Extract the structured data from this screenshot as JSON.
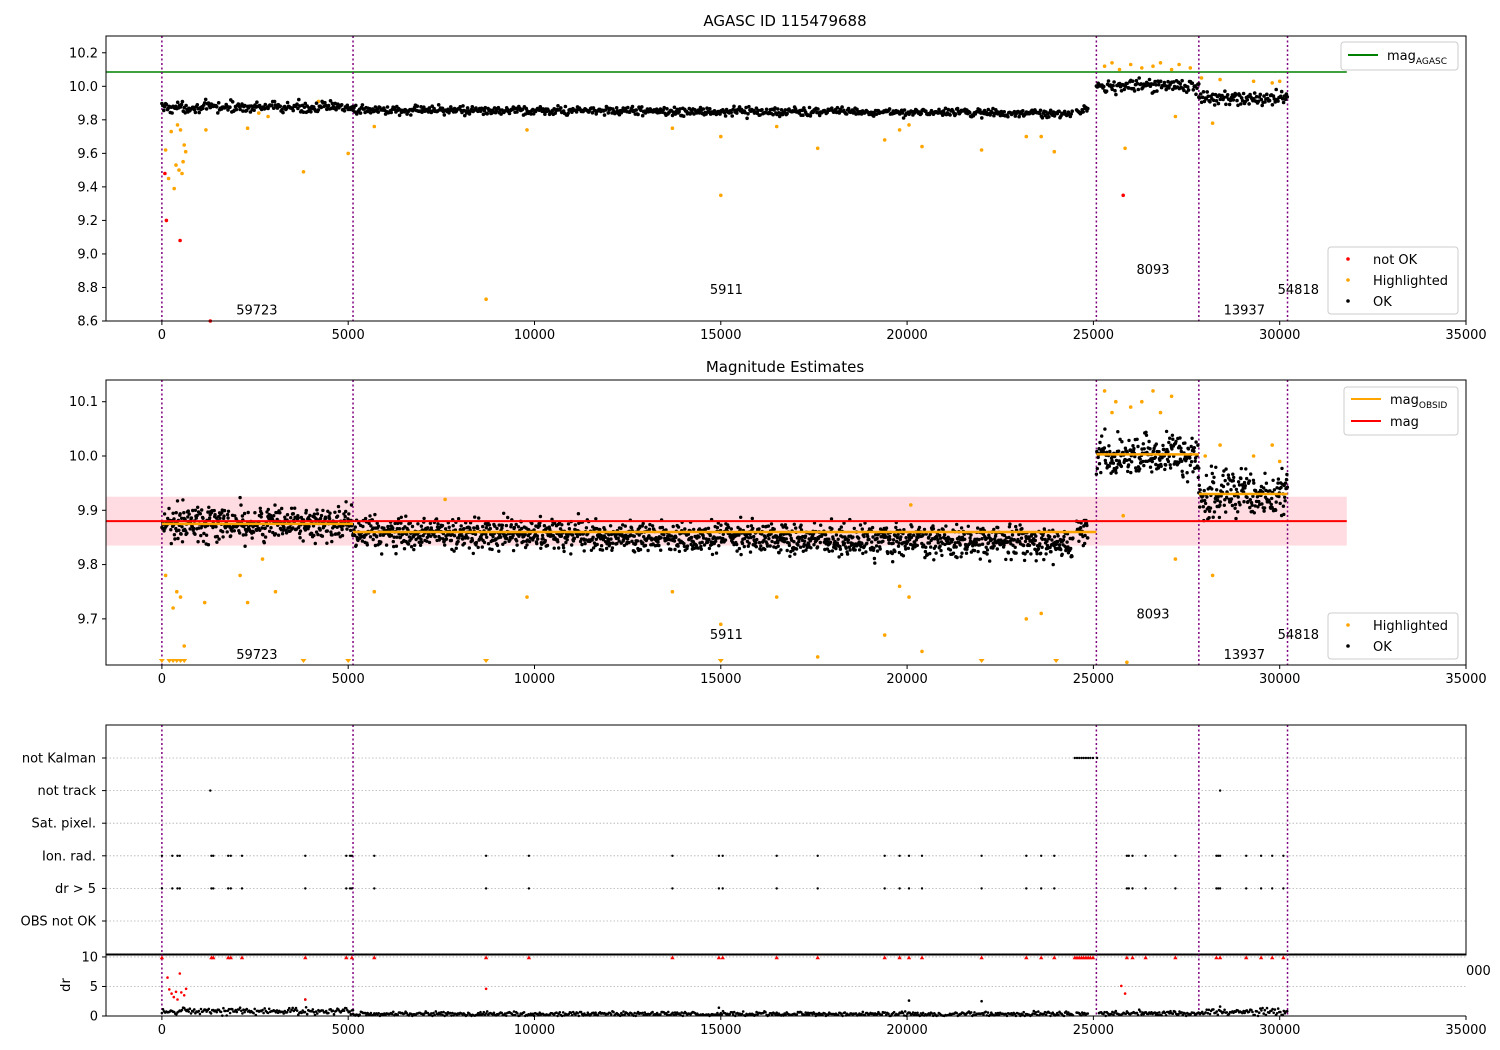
{
  "figure": {
    "background": "#ffffff"
  },
  "chart_data": [
    {
      "type": "scatter",
      "title": "AGASC ID 115479688",
      "xlim": [
        -1500,
        35000
      ],
      "ylim": [
        8.6,
        10.3
      ],
      "xticks": [
        "0",
        "5000",
        "10000",
        "15000",
        "20000",
        "25000",
        "30000",
        "35000"
      ],
      "xtick_values": [
        0,
        5000,
        10000,
        15000,
        20000,
        25000,
        30000,
        35000
      ],
      "yticks": [
        "8.6",
        "8.8",
        "9.0",
        "9.2",
        "9.4",
        "9.6",
        "9.8",
        "10.0",
        "10.2"
      ],
      "ytick_values": [
        8.6,
        8.8,
        9.0,
        9.2,
        9.4,
        9.6,
        9.8,
        10.0,
        10.2
      ],
      "obs_boundaries": [
        0,
        5130,
        25080,
        27830,
        30210
      ],
      "obs_labels": [
        {
          "text": "59723",
          "x": 2550,
          "y": 8.67
        },
        {
          "text": "5911",
          "x": 15150,
          "y": 8.79
        },
        {
          "text": "8093",
          "x": 26600,
          "y": 8.91
        },
        {
          "text": "13937",
          "x": 29050,
          "y": 8.67
        },
        {
          "text": "54818",
          "x": 30500,
          "y": 8.79
        }
      ],
      "hlines": [
        {
          "name": "mag_AGASC",
          "y": 10.085,
          "x0": -1500,
          "x1": 31800,
          "color": "#008000"
        }
      ],
      "segments_ok": [
        {
          "x0": 0,
          "x1": 5130,
          "mean": 9.875,
          "spread": 0.025
        },
        {
          "x0": 5130,
          "x1": 24450,
          "mean": 9.86,
          "spread": 0.02,
          "slope": -0.02
        },
        {
          "x0": 24550,
          "x1": 24850,
          "mean": 9.86,
          "spread": 0.02
        },
        {
          "x0": 25080,
          "x1": 27830,
          "mean": 10.0,
          "spread": 0.03
        },
        {
          "x0": 27830,
          "x1": 30210,
          "mean": 9.93,
          "spread": 0.035
        }
      ],
      "highlighted": [
        [
          100,
          9.62
        ],
        [
          180,
          9.45
        ],
        [
          250,
          9.73
        ],
        [
          330,
          9.39
        ],
        [
          380,
          9.53
        ],
        [
          420,
          9.77
        ],
        [
          460,
          9.5
        ],
        [
          500,
          9.74
        ],
        [
          540,
          9.48
        ],
        [
          570,
          9.55
        ],
        [
          600,
          9.65
        ],
        [
          640,
          9.61
        ],
        [
          1180,
          9.74
        ],
        [
          2300,
          9.75
        ],
        [
          2600,
          9.84
        ],
        [
          2850,
          9.82
        ],
        [
          3800,
          9.49
        ],
        [
          4200,
          9.91
        ],
        [
          5000,
          9.6
        ],
        [
          5700,
          9.76
        ],
        [
          8700,
          8.73
        ],
        [
          9800,
          9.74
        ],
        [
          13700,
          9.75
        ],
        [
          15000,
          9.35
        ],
        [
          15000,
          9.7
        ],
        [
          16500,
          9.76
        ],
        [
          17600,
          9.63
        ],
        [
          19400,
          9.68
        ],
        [
          19800,
          9.74
        ],
        [
          20050,
          9.77
        ],
        [
          20400,
          9.64
        ],
        [
          22000,
          9.62
        ],
        [
          23200,
          9.7
        ],
        [
          23600,
          9.7
        ],
        [
          23950,
          9.61
        ],
        [
          25850,
          9.63
        ],
        [
          27200,
          9.82
        ],
        [
          28200,
          9.78
        ],
        [
          25300,
          10.12
        ],
        [
          25500,
          10.14
        ],
        [
          25700,
          10.1
        ],
        [
          26000,
          10.13
        ],
        [
          26300,
          10.11
        ],
        [
          26600,
          10.12
        ],
        [
          26800,
          10.14
        ],
        [
          27100,
          10.1
        ],
        [
          27300,
          10.13
        ],
        [
          27600,
          10.11
        ],
        [
          27900,
          10.05
        ],
        [
          28400,
          10.04
        ],
        [
          29300,
          10.03
        ],
        [
          29800,
          10.02
        ],
        [
          30000,
          10.03
        ]
      ],
      "not_ok": [
        [
          80,
          9.48
        ],
        [
          120,
          9.2
        ],
        [
          490,
          9.08
        ],
        [
          1300,
          8.6
        ],
        [
          25800,
          9.35
        ]
      ],
      "legend_lines": [
        {
          "label": "mag",
          "sub": "AGASC",
          "color": "#008000"
        }
      ],
      "legend_points": [
        {
          "label": "not OK",
          "color": "#ff0000"
        },
        {
          "label": "Highlighted",
          "color": "#ffa500"
        },
        {
          "label": "OK",
          "color": "#000000"
        }
      ]
    },
    {
      "type": "scatter",
      "title": "Magnitude Estimates",
      "xlim": [
        -1500,
        35000
      ],
      "ylim": [
        9.615,
        10.14
      ],
      "xticks": [
        "0",
        "5000",
        "10000",
        "15000",
        "20000",
        "25000",
        "30000",
        "35000"
      ],
      "xtick_values": [
        0,
        5000,
        10000,
        15000,
        20000,
        25000,
        30000,
        35000
      ],
      "yticks": [
        "9.7",
        "9.8",
        "9.9",
        "10.0",
        "10.1"
      ],
      "ytick_values": [
        9.7,
        9.8,
        9.9,
        10.0,
        10.1
      ],
      "obs_boundaries": [
        0,
        5130,
        25080,
        27830,
        30210
      ],
      "obs_labels": [
        {
          "text": "59723",
          "x": 2550,
          "y": 9.635
        },
        {
          "text": "5911",
          "x": 15150,
          "y": 9.672
        },
        {
          "text": "8093",
          "x": 26600,
          "y": 9.71
        },
        {
          "text": "13937",
          "x": 29050,
          "y": 9.635
        },
        {
          "text": "54818",
          "x": 30500,
          "y": 9.672
        }
      ],
      "mag_band": {
        "y0": 9.835,
        "y1": 9.925,
        "x0": -1500,
        "x1": 31800,
        "color": "#ffc0c8"
      },
      "mag_line": {
        "y": 9.88,
        "color": "#ff0000"
      },
      "obsid_means": [
        {
          "x0": 0,
          "x1": 5130,
          "y": 9.875
        },
        {
          "x0": 5130,
          "x1": 25080,
          "y": 9.86
        },
        {
          "x0": 25080,
          "x1": 27830,
          "y": 10.003
        },
        {
          "x0": 27830,
          "x1": 30210,
          "y": 9.93
        }
      ],
      "segments_ok": [
        {
          "x0": 0,
          "x1": 5130,
          "mean": 9.875,
          "spread": 0.025
        },
        {
          "x0": 5130,
          "x1": 24450,
          "mean": 9.86,
          "spread": 0.022,
          "slope": -0.02
        },
        {
          "x0": 24550,
          "x1": 24850,
          "mean": 9.86,
          "spread": 0.02
        },
        {
          "x0": 25080,
          "x1": 27830,
          "mean": 10.0,
          "spread": 0.03
        },
        {
          "x0": 27830,
          "x1": 30210,
          "mean": 9.93,
          "spread": 0.035
        }
      ],
      "highlighted": [
        [
          100,
          9.78
        ],
        [
          300,
          9.72
        ],
        [
          400,
          9.75
        ],
        [
          500,
          9.74
        ],
        [
          600,
          9.65
        ],
        [
          1150,
          9.73
        ],
        [
          2100,
          9.78
        ],
        [
          2300,
          9.73
        ],
        [
          2700,
          9.81
        ],
        [
          3050,
          9.75
        ],
        [
          5700,
          9.75
        ],
        [
          7600,
          9.92
        ],
        [
          9800,
          9.74
        ],
        [
          13700,
          9.75
        ],
        [
          15000,
          9.69
        ],
        [
          16500,
          9.74
        ],
        [
          17600,
          9.63
        ],
        [
          19400,
          9.67
        ],
        [
          19800,
          9.76
        ],
        [
          20050,
          9.74
        ],
        [
          20400,
          9.64
        ],
        [
          20100,
          9.91
        ],
        [
          23200,
          9.7
        ],
        [
          23600,
          9.71
        ],
        [
          25800,
          9.89
        ],
        [
          25900,
          9.62
        ],
        [
          27200,
          9.81
        ],
        [
          28200,
          9.78
        ],
        [
          25300,
          10.12
        ],
        [
          25500,
          10.08
        ],
        [
          25600,
          10.1
        ],
        [
          26000,
          10.09
        ],
        [
          26300,
          10.1
        ],
        [
          26600,
          10.12
        ],
        [
          26800,
          10.08
        ],
        [
          27100,
          10.11
        ],
        [
          28000,
          10.0
        ],
        [
          28400,
          10.02
        ],
        [
          29300,
          10.0
        ],
        [
          29800,
          10.02
        ],
        [
          30000,
          9.99
        ]
      ],
      "clipped": [
        0,
        200,
        300,
        400,
        500,
        600,
        3800,
        5000,
        8700,
        15000,
        22000,
        24000
      ],
      "legend_lines": [
        {
          "label": "mag",
          "sub": "OBSID",
          "color": "#ffa500"
        },
        {
          "label": "mag",
          "sub": "",
          "color": "#ff0000"
        }
      ],
      "legend_points": [
        {
          "label": "Highlighted",
          "color": "#ffa500"
        },
        {
          "label": "OK",
          "color": "#000000"
        }
      ]
    },
    {
      "type": "scatter",
      "title": "",
      "xlim": [
        -1500,
        35000
      ],
      "categories": [
        "not Kalman",
        "not track",
        "Sat. pixel.",
        "Ion. rad.",
        "dr > 5",
        "OBS not OK"
      ],
      "events": {
        "not Kalman": [
          24500,
          24560,
          24620,
          24680,
          24740,
          24800,
          24860,
          24920,
          24990,
          25100
        ],
        "not track": [
          1300,
          28400
        ],
        "Sat. pixel.": [],
        "Ion. rad.": [
          0,
          280,
          420,
          480,
          1330,
          1380,
          1780,
          1850,
          2150,
          3850,
          4950,
          5050,
          5100,
          5700,
          8700,
          9850,
          13700,
          14950,
          15050,
          16500,
          17600,
          19400,
          19800,
          20050,
          20400,
          22000,
          23200,
          23600,
          23950,
          25900,
          25950,
          26050,
          26400,
          27200,
          28300,
          28350,
          28400,
          29100,
          29500,
          29800,
          30100
        ],
        "dr > 5": [
          0,
          280,
          420,
          480,
          1330,
          1380,
          1780,
          1850,
          2150,
          3850,
          4950,
          5050,
          5100,
          5700,
          8700,
          9850,
          13700,
          14950,
          15050,
          16500,
          17600,
          19400,
          19800,
          20050,
          20400,
          22000,
          23200,
          23600,
          23950,
          25900,
          25950,
          26050,
          26400,
          27200,
          28300,
          28350,
          28400,
          29100,
          29500,
          29800,
          30100
        ],
        "OBS not OK": []
      },
      "obs_boundaries": [
        0,
        5130,
        25080,
        27830,
        30210
      ]
    },
    {
      "type": "scatter",
      "title": "",
      "ylabel": "dr",
      "xlim": [
        -1500,
        35000
      ],
      "ylim": [
        0,
        10.5
      ],
      "xticks": [
        "0",
        "5000",
        "10000",
        "15000",
        "20000",
        "25000",
        "30000",
        "35000"
      ],
      "xtick_values": [
        0,
        5000,
        10000,
        15000,
        20000,
        25000,
        30000,
        35000
      ],
      "yticks": [
        "0",
        "5",
        "10"
      ],
      "ytick_values": [
        0,
        5,
        10
      ],
      "stray_tick": "000",
      "obs_boundaries": [
        0,
        5130,
        25080,
        27830,
        30210
      ],
      "dr_ok_segments": [
        {
          "x0": 0,
          "x1": 5130,
          "mean": 0.8,
          "spread": 0.45
        },
        {
          "x0": 5130,
          "x1": 24450,
          "mean": 0.35,
          "spread": 0.3
        },
        {
          "x0": 24550,
          "x1": 24850,
          "mean": 0.4,
          "spread": 0.3
        },
        {
          "x0": 25150,
          "x1": 27830,
          "mean": 0.45,
          "spread": 0.35
        },
        {
          "x0": 27830,
          "x1": 30210,
          "mean": 0.7,
          "spread": 0.45
        }
      ],
      "dr_high": [
        [
          0,
          9.9
        ],
        [
          150,
          6.5
        ],
        [
          200,
          4.5
        ],
        [
          260,
          3.8
        ],
        [
          320,
          3.2
        ],
        [
          380,
          4.1
        ],
        [
          420,
          2.8
        ],
        [
          480,
          7.2
        ],
        [
          520,
          4.0
        ],
        [
          600,
          3.5
        ],
        [
          650,
          4.6
        ],
        [
          1330,
          9.9
        ],
        [
          1380,
          9.9
        ],
        [
          1780,
          9.9
        ],
        [
          1850,
          9.9
        ],
        [
          2150,
          9.9
        ],
        [
          3850,
          9.9
        ],
        [
          3850,
          2.8
        ],
        [
          4950,
          9.9
        ],
        [
          5100,
          9.9
        ],
        [
          5700,
          9.9
        ],
        [
          8700,
          9.9
        ],
        [
          8700,
          4.6
        ],
        [
          9850,
          9.9
        ],
        [
          13700,
          9.9
        ],
        [
          14950,
          9.9
        ],
        [
          15050,
          9.9
        ],
        [
          16500,
          9.9
        ],
        [
          17600,
          9.9
        ],
        [
          19400,
          9.9
        ],
        [
          19800,
          9.9
        ],
        [
          20050,
          9.9
        ],
        [
          20400,
          9.9
        ],
        [
          22000,
          9.9
        ],
        [
          23200,
          9.9
        ],
        [
          23600,
          9.9
        ],
        [
          23950,
          9.9
        ],
        [
          25750,
          5.1
        ],
        [
          25850,
          3.8
        ],
        [
          25900,
          9.9
        ],
        [
          26050,
          9.9
        ],
        [
          26400,
          9.9
        ],
        [
          27200,
          9.9
        ],
        [
          28300,
          9.9
        ],
        [
          28400,
          9.9
        ],
        [
          29100,
          9.9
        ],
        [
          29500,
          9.9
        ],
        [
          29800,
          9.9
        ],
        [
          30100,
          9.9
        ],
        [
          24500,
          9.9
        ],
        [
          24560,
          9.9
        ],
        [
          24620,
          9.9
        ],
        [
          24680,
          9.9
        ],
        [
          24740,
          9.9
        ],
        [
          24800,
          9.9
        ],
        [
          24860,
          9.9
        ],
        [
          24920,
          9.9
        ],
        [
          24990,
          9.9
        ]
      ],
      "dr_stray": [
        [
          3850,
          2.8
        ],
        [
          20050,
          2.6
        ],
        [
          22000,
          2.5
        ],
        [
          14950,
          1.4
        ],
        [
          28400,
          1.6
        ]
      ]
    }
  ]
}
